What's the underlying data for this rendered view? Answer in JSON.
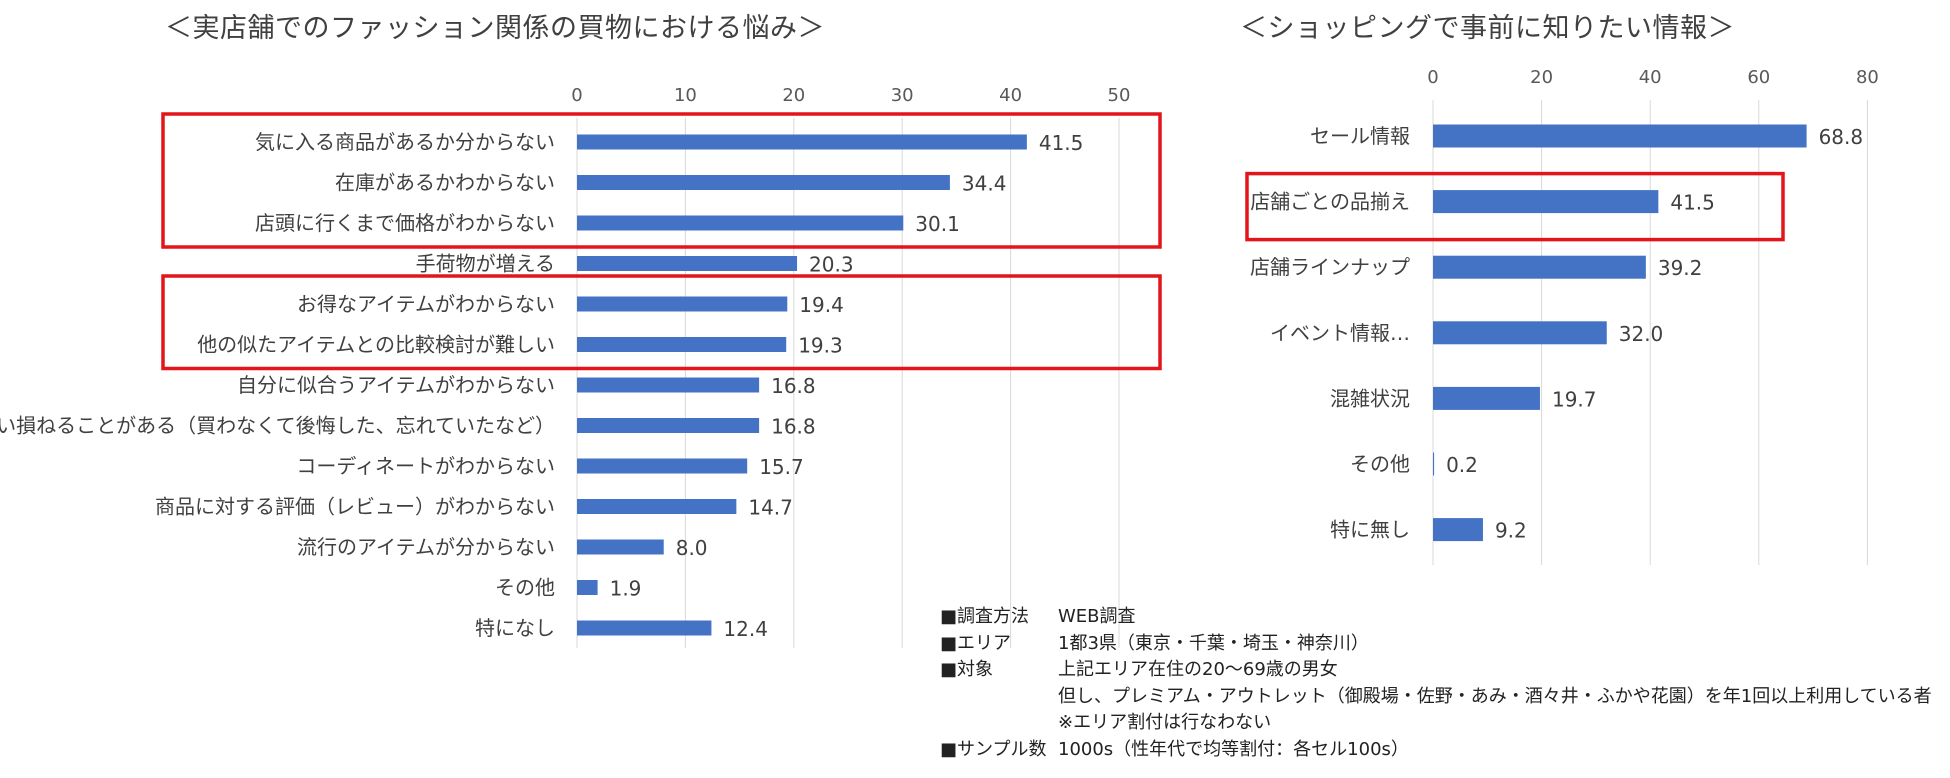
{
  "chart_data": [
    {
      "type": "bar",
      "orientation": "horizontal",
      "title": "＜実店舗でのファッション関係の買物における悩み＞",
      "categories": [
        "気に入る商品があるか分からない",
        "在庫があるかわからない",
        "店頭に行くまで価格がわからない",
        "手荷物が増える",
        "お得なアイテムがわからない",
        "他の似たアイテムとの比較検討が難しい",
        "自分に似合うアイテムがわからない",
        "買い損ねることがある（買わなくて後悔した、忘れていたなど）",
        "コーディネートがわからない",
        "商品に対する評価（レビュー）がわからない",
        "流行のアイテムが分からない",
        "その他",
        "特になし"
      ],
      "values": [
        41.5,
        34.4,
        30.1,
        20.3,
        19.4,
        19.3,
        16.8,
        16.8,
        15.7,
        14.7,
        8.0,
        1.9,
        12.4
      ],
      "value_labels": [
        "41.5",
        "34.4",
        "30.1",
        "20.3",
        "19.4",
        "19.3",
        "16.8",
        "16.8",
        "15.7",
        "14.7",
        "8.0",
        "1.9",
        "12.4"
      ],
      "xlim": [
        0,
        50
      ],
      "ticks": [
        0,
        10,
        20,
        30,
        40,
        50
      ],
      "tick_labels": [
        "0",
        "10",
        "20",
        "30",
        "40",
        "50"
      ],
      "grid": true,
      "highlight_groups": [
        [
          0,
          2
        ],
        [
          4,
          5
        ]
      ],
      "bar_color": "#4472c4",
      "highlight_color": "#e3151a"
    },
    {
      "type": "bar",
      "orientation": "horizontal",
      "title": "＜ショッピングで事前に知りたい情報＞",
      "categories": [
        "セール情報",
        "店舗ごとの品揃え",
        "店舗ラインナップ",
        "イベント情報…",
        "混雑状況",
        "その他",
        "特に無し"
      ],
      "values": [
        68.8,
        41.5,
        39.2,
        32.0,
        19.7,
        0.2,
        9.2
      ],
      "value_labels": [
        "68.8",
        "41.5",
        "39.2",
        "32.0",
        "19.7",
        "0.2",
        "9.2"
      ],
      "xlim": [
        0,
        80
      ],
      "ticks": [
        0,
        20,
        40,
        60,
        80
      ],
      "tick_labels": [
        "0",
        "20",
        "40",
        "60",
        "80"
      ],
      "grid": true,
      "highlight_groups": [
        [
          1,
          1
        ]
      ],
      "bar_color": "#4472c4",
      "highlight_color": "#e3151a"
    }
  ],
  "survey": [
    {
      "key": "■調査方法",
      "value": "WEB調査"
    },
    {
      "key": "■エリア",
      "value": "1都3県（東京・千葉・埼玉・神奈川）"
    },
    {
      "key": "■対象",
      "value": "上記エリア在住の20～69歳の男女"
    },
    {
      "key": "",
      "value": "但し、プレミアム・アウトレット（御殿場・佐野・あみ・酒々井・ふかや花園）を年1回以上利用している者"
    },
    {
      "key": "",
      "value": "※エリア割付は行なわない"
    },
    {
      "key": "■サンプル数",
      "value": "1000s（性年代で均等割付：各セル100s）"
    }
  ]
}
